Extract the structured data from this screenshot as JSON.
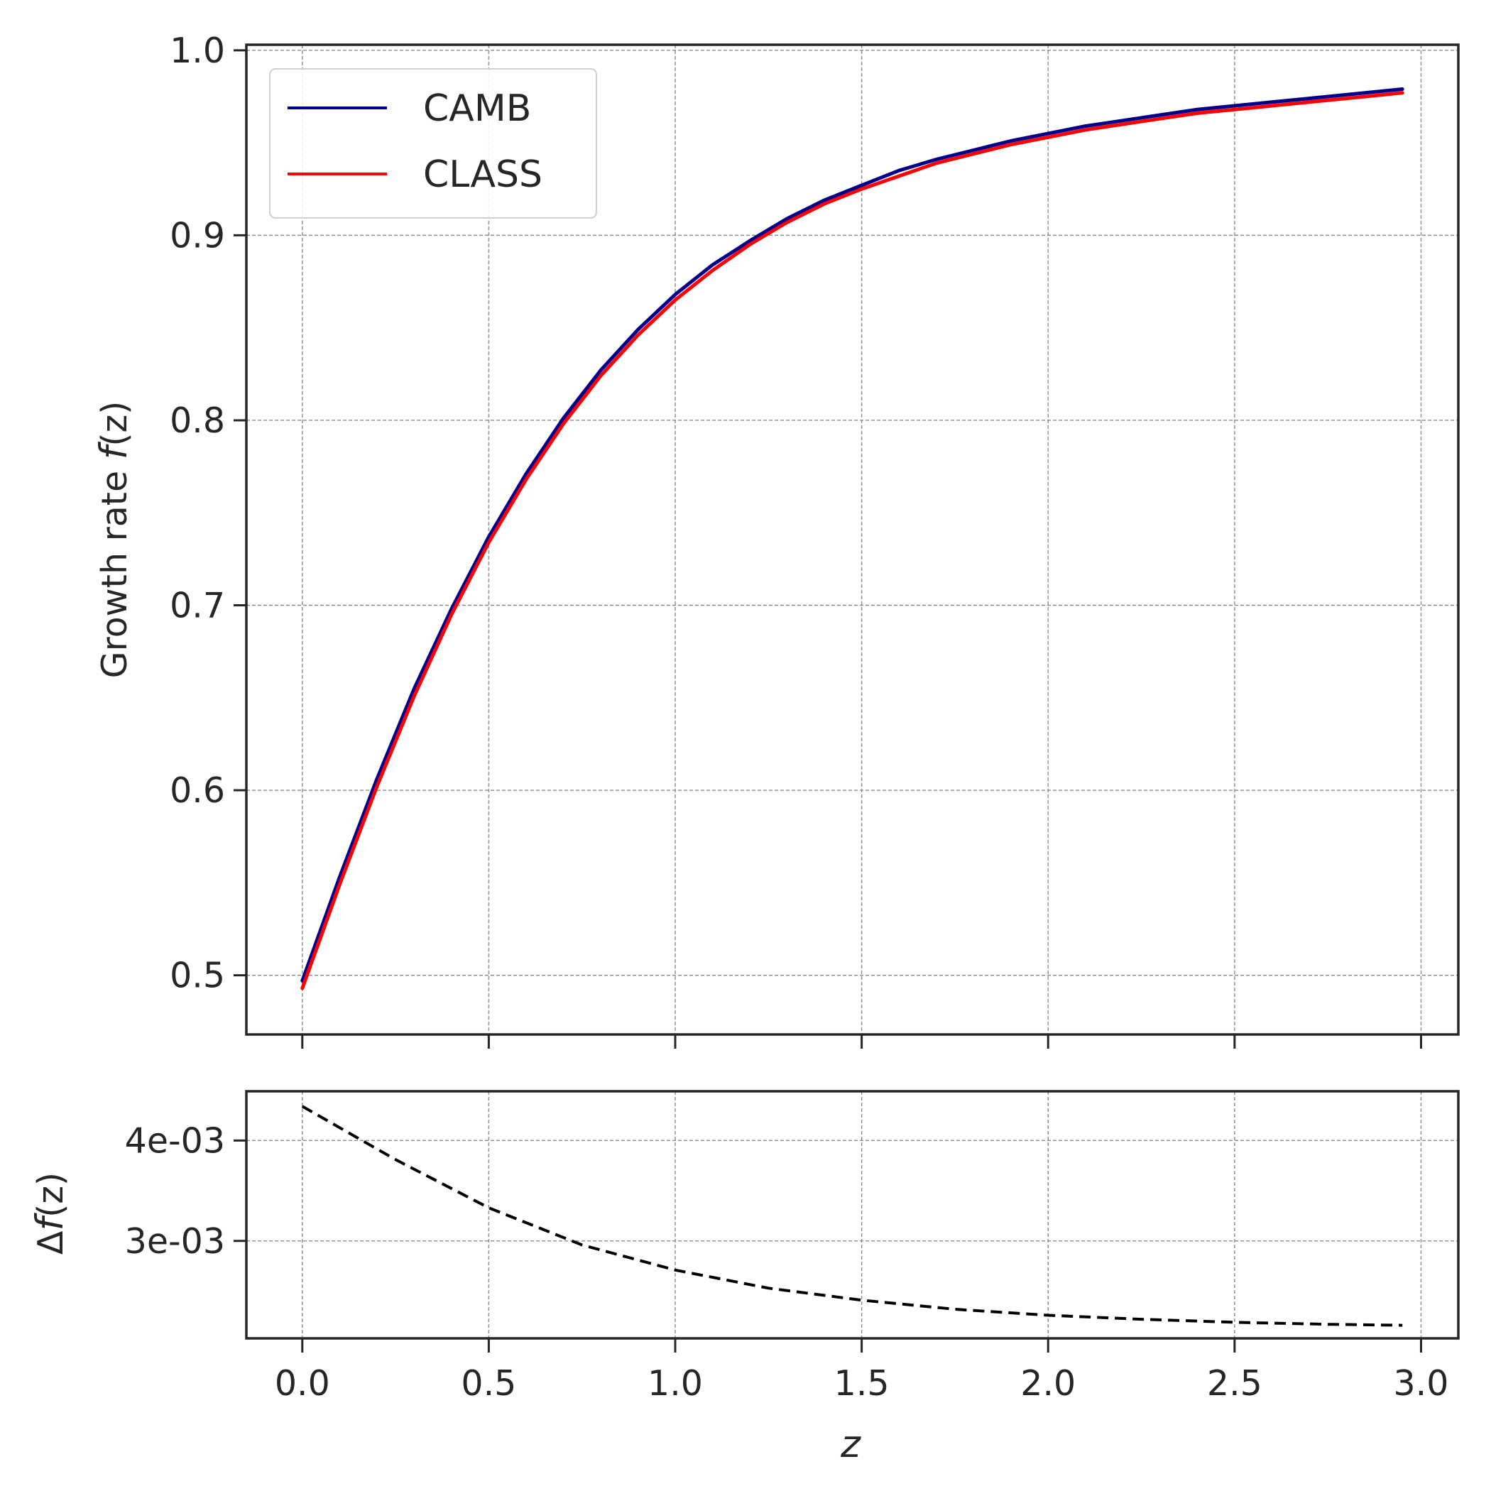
{
  "chart_data": [
    {
      "type": "line",
      "ylabel": "Growth rate f(z)",
      "ylabel_parts": {
        "text": "Growth rate ",
        "italic": "f",
        "tail": "(z)"
      },
      "xlim": [
        -0.15,
        3.1
      ],
      "ylim": [
        0.468,
        1.003
      ],
      "xticks": [
        0.0,
        0.5,
        1.0,
        1.5,
        2.0,
        2.5,
        3.0
      ],
      "yticks": [
        0.5,
        0.6,
        0.7,
        0.8,
        0.9,
        1.0
      ],
      "ytick_labels": [
        "0.5",
        "0.6",
        "0.7",
        "0.8",
        "0.9",
        "1.0"
      ],
      "grid": true,
      "legend": "top-left",
      "colors": {
        "CAMB": "#00008b",
        "CLASS": "#ff0000"
      },
      "x": [
        0.0,
        0.1,
        0.2,
        0.3,
        0.4,
        0.5,
        0.6,
        0.7,
        0.8,
        0.9,
        1.0,
        1.1,
        1.2,
        1.3,
        1.4,
        1.5,
        1.6,
        1.7,
        1.8,
        1.9,
        2.0,
        2.1,
        2.2,
        2.3,
        2.4,
        2.5,
        2.6,
        2.7,
        2.8,
        2.9,
        2.95
      ],
      "series": [
        {
          "name": "CAMB",
          "values": [
            0.497,
            0.553,
            0.606,
            0.655,
            0.698,
            0.737,
            0.771,
            0.801,
            0.827,
            0.849,
            0.868,
            0.884,
            0.897,
            0.909,
            0.919,
            0.927,
            0.935,
            0.941,
            0.946,
            0.951,
            0.955,
            0.959,
            0.962,
            0.965,
            0.968,
            0.97,
            0.972,
            0.974,
            0.976,
            0.978,
            0.979
          ]
        },
        {
          "name": "CLASS",
          "values": [
            0.493,
            0.549,
            0.602,
            0.651,
            0.695,
            0.734,
            0.768,
            0.798,
            0.824,
            0.846,
            0.865,
            0.881,
            0.895,
            0.907,
            0.917,
            0.925,
            0.932,
            0.939,
            0.944,
            0.949,
            0.953,
            0.957,
            0.96,
            0.963,
            0.966,
            0.968,
            0.97,
            0.972,
            0.974,
            0.976,
            0.977
          ]
        }
      ]
    },
    {
      "type": "line",
      "xlabel": "z",
      "ylabel": "Δf(z)",
      "ylabel_parts": {
        "text": "Δ",
        "italic": "f",
        "tail": "(z)"
      },
      "xlim": [
        -0.15,
        3.1
      ],
      "ylim": [
        0.00203,
        0.00449
      ],
      "xticks": [
        0.0,
        0.5,
        1.0,
        1.5,
        2.0,
        2.5,
        3.0
      ],
      "xtick_labels": [
        "0.0",
        "0.5",
        "1.0",
        "1.5",
        "2.0",
        "2.5",
        "3.0"
      ],
      "yticks": [
        0.003,
        0.004
      ],
      "ytick_labels": [
        "3e-03",
        "4e-03"
      ],
      "grid": true,
      "line_style": "dashed",
      "colors": {
        "line": "#000000"
      },
      "x": [
        0.0,
        0.25,
        0.5,
        0.75,
        1.0,
        1.25,
        1.5,
        1.75,
        2.0,
        2.25,
        2.5,
        2.75,
        2.95
      ],
      "values": [
        0.00434,
        0.00381,
        0.00333,
        0.00296,
        0.00271,
        0.00253,
        0.00241,
        0.00232,
        0.00226,
        0.00222,
        0.00219,
        0.00217,
        0.00216
      ]
    }
  ]
}
